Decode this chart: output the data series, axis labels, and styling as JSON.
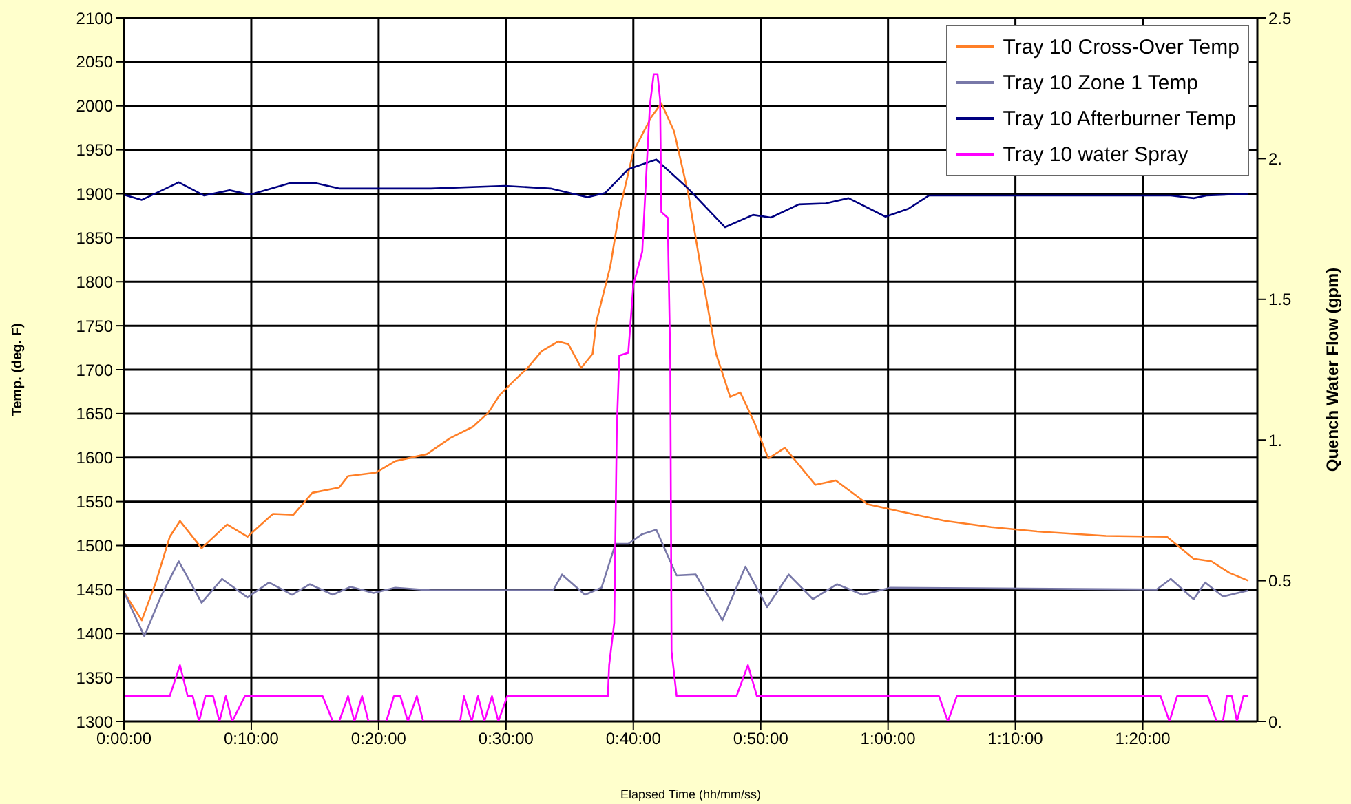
{
  "chart_data": {
    "type": "line",
    "xlabel": "Elapsed Time (hh/mm/ss)",
    "ylabel": "Temp. (deg. F)",
    "y2label": "Quench Water Flow (gpm)",
    "xlim": [
      0,
      89
    ],
    "xticks": [
      {
        "value": 0,
        "label": "0:00:00"
      },
      {
        "value": 10,
        "label": "0:10:00"
      },
      {
        "value": 20,
        "label": "0:20:00"
      },
      {
        "value": 30,
        "label": "0:30:00"
      },
      {
        "value": 40,
        "label": "0:40:00"
      },
      {
        "value": 50,
        "label": "0:50:00"
      },
      {
        "value": 60,
        "label": "1:00:00"
      },
      {
        "value": 70,
        "label": "1:10:00"
      },
      {
        "value": 80,
        "label": "1:20:00"
      }
    ],
    "ylim": [
      1300,
      2100
    ],
    "yticks": [
      1300,
      1350,
      1400,
      1450,
      1500,
      1550,
      1600,
      1650,
      1700,
      1750,
      1800,
      1850,
      1900,
      1950,
      2000,
      2050,
      2100
    ],
    "y2lim": [
      0,
      2.5
    ],
    "y2ticks": [
      {
        "value": 0,
        "label": "0."
      },
      0.5,
      {
        "value": 1,
        "label": "1."
      },
      1.5,
      {
        "value": 2,
        "label": "2."
      },
      2.5
    ],
    "grid": true,
    "legend": "top right",
    "marker": "none",
    "line_style": "solid",
    "series": [
      {
        "name": "Tray 10 Cross-Over Temp",
        "color": "#ff7f27",
        "x": [
          0,
          1.4,
          2.5,
          3.6,
          4.4,
          6.1,
          8.1,
          9.7,
          11.7,
          13.3,
          14.8,
          16.9,
          17.6,
          19.8,
          21.3,
          23.8,
          25.6,
          27.4,
          28.6,
          29.5,
          30.6,
          31.7,
          32.8,
          34.1,
          34.9,
          35.9,
          36.8,
          37.1,
          38.2,
          38.9,
          40.0,
          41.4,
          42.2,
          43.2,
          44.3,
          45.4,
          46.5,
          47.6,
          48.4,
          49.5,
          50.6,
          51.9,
          54.3,
          55.9,
          58.4,
          60.9,
          64.5,
          68.1,
          71.7,
          77.1,
          81.9,
          84.0,
          85.4,
          86.8,
          88.3
        ],
        "values": [
          1447,
          1415,
          1458,
          1510,
          1528,
          1497,
          1524,
          1510,
          1536,
          1535,
          1560,
          1566,
          1579,
          1583,
          1596,
          1604,
          1622,
          1635,
          1651,
          1671,
          1687,
          1702,
          1721,
          1732,
          1729,
          1702,
          1718,
          1755,
          1818,
          1880,
          1948,
          1987,
          2003,
          1971,
          1901,
          1807,
          1718,
          1669,
          1674,
          1640,
          1599,
          1611,
          1569,
          1574,
          1547,
          1539,
          1528,
          1521,
          1516,
          1511,
          1510,
          1485,
          1482,
          1469,
          1460
        ]
      },
      {
        "name": "Tray 10 Zone 1 Temp",
        "color": "#7878a8",
        "x": [
          0,
          1.6,
          2.9,
          4.3,
          6.1,
          7.7,
          9.7,
          11.4,
          13.2,
          14.6,
          16.4,
          17.8,
          19.6,
          21.3,
          24.1,
          33.7,
          34.4,
          36.2,
          37.5,
          38.6,
          39.6,
          40.7,
          41.8,
          42.9,
          43.4,
          44.9,
          47.0,
          48.8,
          50.5,
          52.2,
          54.1,
          56.0,
          58.0,
          60.2,
          81.1,
          82.2,
          84.0,
          84.9,
          86.3,
          88.3
        ],
        "values": [
          1447,
          1397,
          1442,
          1482,
          1435,
          1462,
          1441,
          1458,
          1444,
          1456,
          1444,
          1453,
          1446,
          1452,
          1449,
          1449,
          1467,
          1444,
          1452,
          1502,
          1502,
          1513,
          1518,
          1482,
          1466,
          1467,
          1415,
          1476,
          1430,
          1467,
          1439,
          1456,
          1444,
          1452,
          1450,
          1462,
          1439,
          1458,
          1442,
          1449
        ]
      },
      {
        "name": "Tray 10 Afterburner Temp",
        "color": "#000080",
        "x": [
          0,
          1.4,
          4.3,
          6.3,
          8.3,
          9.9,
          13.0,
          15.1,
          16.9,
          20.5,
          24.1,
          29.9,
          33.5,
          36.4,
          37.8,
          39.6,
          41.8,
          44.3,
          47.2,
          49.4,
          50.8,
          53.0,
          55.1,
          56.9,
          59.8,
          61.6,
          63.2,
          82.2,
          84.0,
          85.0,
          88.3
        ],
        "values": [
          1899,
          1893,
          1913,
          1898,
          1904,
          1899,
          1912,
          1912,
          1906,
          1906,
          1906,
          1909,
          1906,
          1896,
          1901,
          1928,
          1939,
          1906,
          1862,
          1876,
          1873,
          1888,
          1889,
          1895,
          1874,
          1883,
          1898,
          1898,
          1895,
          1898,
          1900
        ]
      },
      {
        "name": "Tray 10 water Spray",
        "color": "#ff00ff",
        "axis": "y2",
        "x": [
          0,
          3.6,
          4.4,
          5.0,
          5.4,
          5.9,
          6.4,
          7.0,
          7.5,
          8.0,
          8.5,
          9.5,
          15.6,
          16.4,
          16.9,
          17.6,
          18.1,
          18.7,
          19.2,
          20.6,
          21.2,
          21.7,
          22.3,
          23.0,
          23.5,
          26.4,
          26.7,
          27.3,
          27.8,
          28.3,
          28.9,
          29.4,
          30.1,
          38.0,
          38.1,
          38.5,
          38.7,
          38.9,
          39.6,
          40.0,
          40.7,
          41.3,
          41.6,
          41.9,
          42.1,
          42.2,
          42.7,
          42.9,
          43.0,
          43.4,
          48.1,
          49.0,
          49.7,
          64.0,
          64.7,
          65.4,
          81.4,
          82.1,
          82.7,
          85.1,
          85.8,
          86.3,
          86.6,
          87.0,
          87.4,
          87.9,
          88.3
        ],
        "values": [
          0.09,
          0.09,
          0.2,
          0.09,
          0.09,
          0,
          0.09,
          0.09,
          0,
          0.09,
          0,
          0.09,
          0.09,
          0,
          0,
          0.09,
          0,
          0.09,
          0,
          0,
          0.09,
          0.09,
          0,
          0.09,
          0,
          0,
          0.09,
          0,
          0.09,
          0,
          0.09,
          0,
          0.09,
          0.09,
          0.2,
          0.35,
          1.04,
          1.3,
          1.31,
          1.55,
          1.67,
          2.19,
          2.3,
          2.3,
          2.21,
          1.81,
          1.79,
          1.28,
          0.25,
          0.09,
          0.09,
          0.2,
          0.09,
          0.09,
          0,
          0.09,
          0.09,
          0,
          0.09,
          0.09,
          0,
          0,
          0.09,
          0.09,
          0,
          0.09,
          0.09
        ]
      }
    ]
  }
}
